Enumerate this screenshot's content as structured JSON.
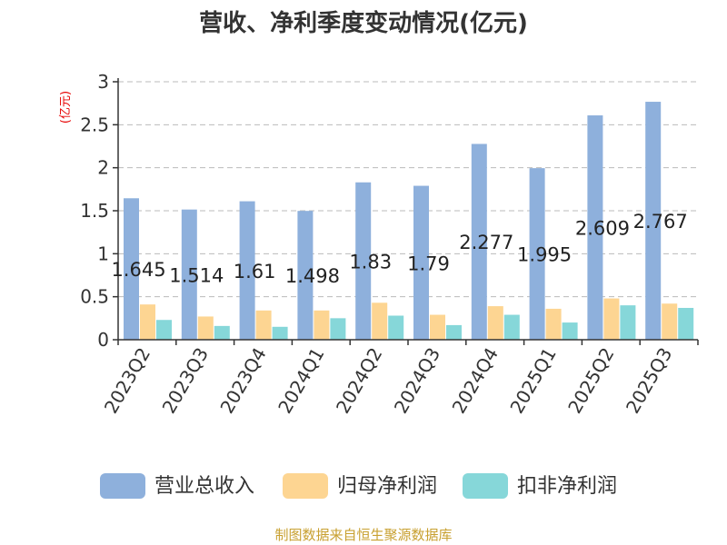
{
  "chart_data": {
    "type": "bar",
    "title": "营收、净利季度变动情况(亿元)",
    "ylabel": "(亿元)",
    "xlabel": "",
    "ylim": [
      0,
      3
    ],
    "yticks": [
      "0",
      "0.5",
      "1",
      "1.5",
      "2",
      "2.5",
      "3"
    ],
    "grid": true,
    "legend_position": "bottom",
    "categories": [
      "2023Q2",
      "2023Q3",
      "2023Q4",
      "2024Q1",
      "2024Q2",
      "2024Q3",
      "2024Q4",
      "2025Q1",
      "2025Q2",
      "2025Q3"
    ],
    "series": [
      {
        "name": "营业总收入",
        "color": "#8eb0dc",
        "values": [
          1.645,
          1.514,
          1.61,
          1.498,
          1.83,
          1.79,
          2.277,
          1.995,
          2.609,
          2.767
        ],
        "labels": [
          "1.645",
          "1.514",
          "1.61",
          "1.498",
          "1.83",
          "1.79",
          "2.277",
          "1.995",
          "2.609",
          "2.767"
        ]
      },
      {
        "name": "归母净利润",
        "color": "#fdd592",
        "values": [
          0.41,
          0.27,
          0.34,
          0.34,
          0.43,
          0.29,
          0.39,
          0.36,
          0.48,
          0.42
        ]
      },
      {
        "name": "扣非净利润",
        "color": "#86d7d9",
        "values": [
          0.23,
          0.16,
          0.15,
          0.25,
          0.28,
          0.17,
          0.29,
          0.2,
          0.4,
          0.37
        ]
      }
    ]
  },
  "footer": {
    "source": "制图数据来自恒生聚源数据库"
  }
}
